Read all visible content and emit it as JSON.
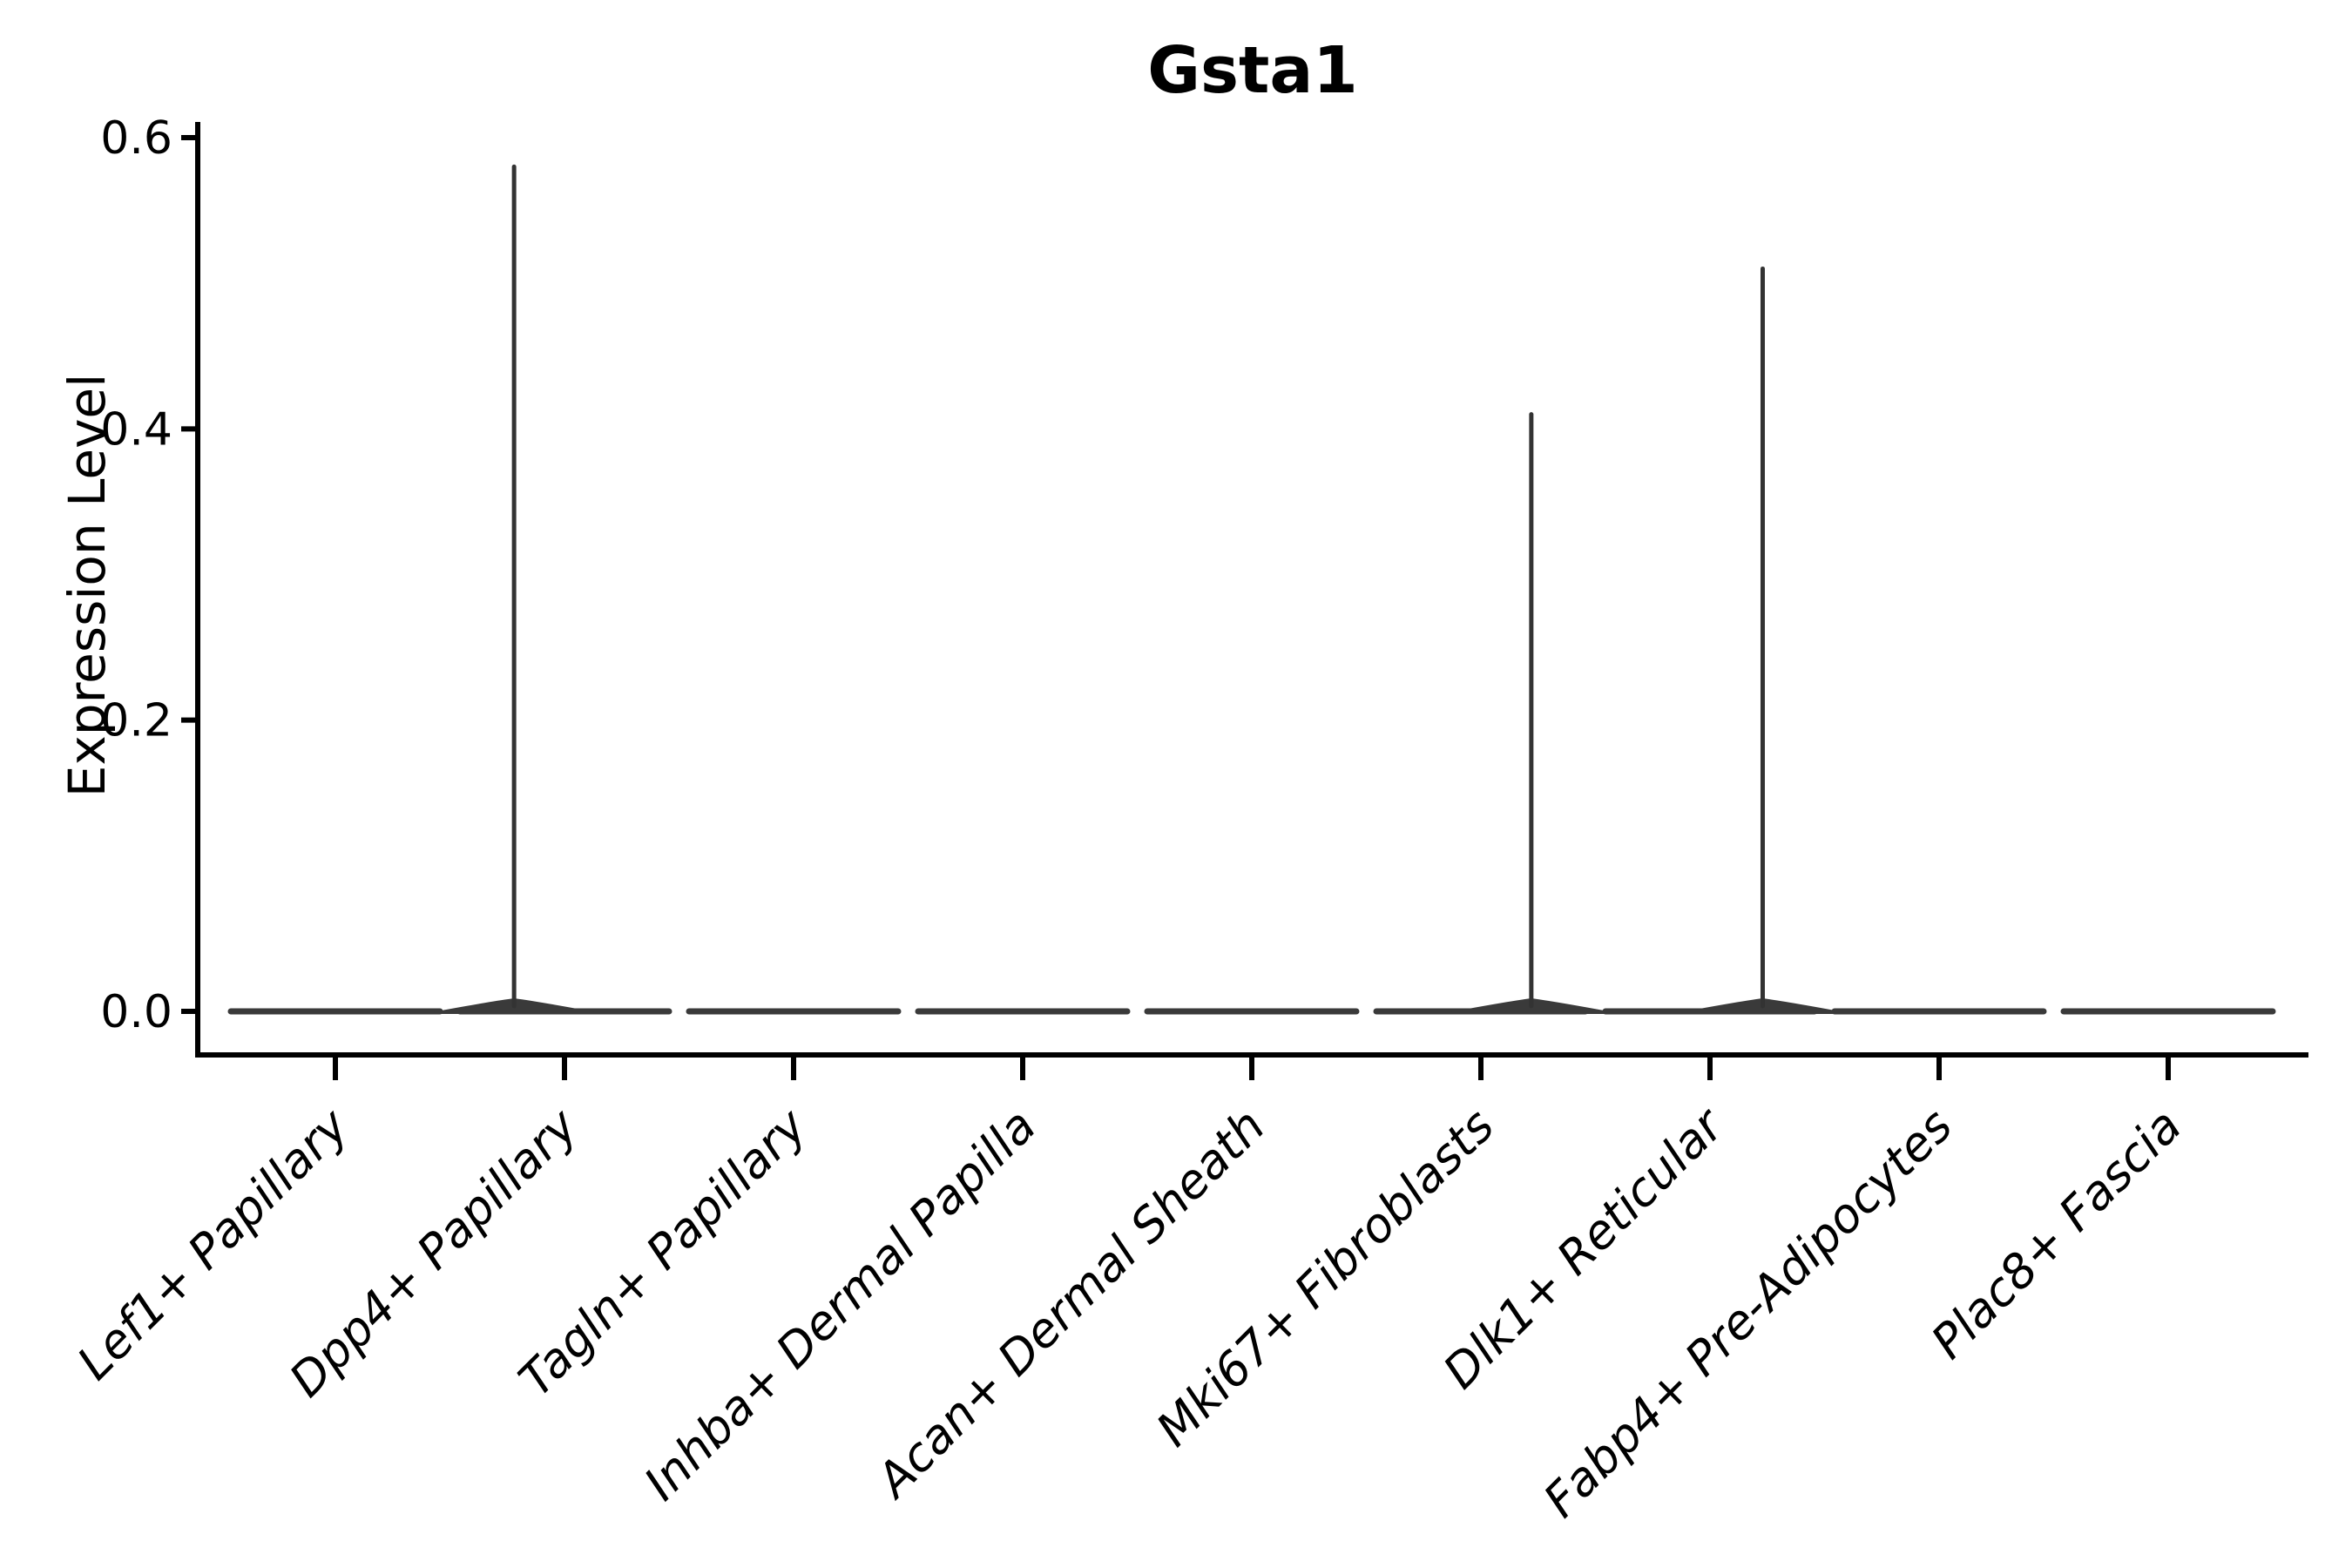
{
  "figure": {
    "background": "#ffffff"
  },
  "chart_data": {
    "type": "violin",
    "title": "Gsta1",
    "ylabel": "Expression Level",
    "xlabel": "",
    "legend": "none",
    "grid": false,
    "categories": [
      "Lef1+ Papillary",
      "Dpp4+ Papillary",
      "Tagln+ Papillary",
      "Inhba+ Dermal Papilla",
      "Acan+ Dermal Sheath",
      "Mki67+ Fibroblasts",
      "Dlk1+ Reticular",
      "Fabp4+ Pre-Adipocytes",
      "Plac8+ Fascia"
    ],
    "y_ticks": [
      {
        "label": "0.0",
        "value": 0.0
      },
      {
        "label": "0.2",
        "value": 0.2
      },
      {
        "label": "0.4",
        "value": 0.4
      },
      {
        "label": "0.6",
        "value": 0.6
      }
    ],
    "ylim": [
      -0.03,
      0.61
    ],
    "category_label_rotation_deg": 45,
    "category_label_style": "italic",
    "violins": [
      {
        "category": "Lef1+ Papillary",
        "baseline": 0.0,
        "peak": 0.0,
        "peak_x_offset": 0
      },
      {
        "category": "Dpp4+ Papillary",
        "baseline": 0.0,
        "peak": 0.58,
        "peak_x_offset": -0.22
      },
      {
        "category": "Tagln+ Papillary",
        "baseline": 0.0,
        "peak": 0.0,
        "peak_x_offset": 0
      },
      {
        "category": "Inhba+ Dermal Papilla",
        "baseline": 0.0,
        "peak": 0.0,
        "peak_x_offset": 0
      },
      {
        "category": "Acan+ Dermal Sheath",
        "baseline": 0.0,
        "peak": 0.0,
        "peak_x_offset": 0
      },
      {
        "category": "Mki67+ Fibroblasts",
        "baseline": 0.0,
        "peak": 0.41,
        "peak_x_offset": 0.22
      },
      {
        "category": "Dlk1+ Reticular",
        "baseline": 0.0,
        "peak": 0.51,
        "peak_x_offset": 0.23
      },
      {
        "category": "Fabp4+ Pre-Adipocytes",
        "baseline": 0.0,
        "peak": 0.0,
        "peak_x_offset": 0
      },
      {
        "category": "Plac8+ Fascia",
        "baseline": 0.0,
        "peak": 0.0,
        "peak_x_offset": 0
      }
    ],
    "colors": {
      "violin": "#3a3a3a",
      "spike": "#333333",
      "axis": "#000000",
      "text": "#000000"
    }
  }
}
